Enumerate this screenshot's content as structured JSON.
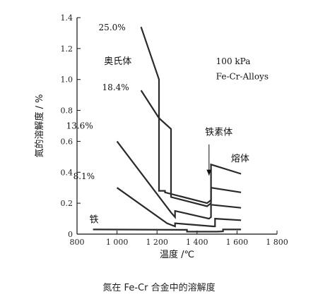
{
  "caption": "氮在 Fe-Cr 合金中的溶解度",
  "chart_data": {
    "type": "line",
    "title": "",
    "xlabel": "温度 /℃",
    "ylabel": "氮的溶解度 / %",
    "xlim": [
      800,
      1800
    ],
    "ylim": [
      0,
      1.4
    ],
    "x_ticks": [
      800,
      1000,
      1200,
      1400,
      1600,
      1800
    ],
    "x_tick_labels": [
      "800",
      "1 000",
      "1 200",
      "1 400",
      "1 600",
      "1 800"
    ],
    "y_ticks": [
      0,
      0.2,
      0.4,
      0.6,
      0.8,
      1.0,
      1.2,
      1.4
    ],
    "y_tick_labels": [
      "0",
      "0.2",
      "0.4",
      "0.6",
      "0.8",
      "1.0",
      "1.2",
      "1.4"
    ],
    "grid": false,
    "series": [
      {
        "name": "25.0%",
        "x": [
          1120,
          1210,
          1210,
          1240,
          1240,
          1450,
          1470,
          1470,
          1620
        ],
        "y": [
          1.34,
          1.0,
          0.28,
          0.28,
          0.27,
          0.2,
          0.22,
          0.45,
          0.39
        ]
      },
      {
        "name": "18.4%",
        "x": [
          1120,
          1210,
          1270,
          1270,
          1450,
          1470,
          1470,
          1620
        ],
        "y": [
          0.93,
          0.75,
          0.68,
          0.24,
          0.18,
          0.2,
          0.3,
          0.27
        ]
      },
      {
        "name": "13.6%",
        "x": [
          1000,
          1270,
          1290,
          1290,
          1460,
          1470,
          1470,
          1620
        ],
        "y": [
          0.6,
          0.14,
          0.11,
          0.15,
          0.1,
          0.11,
          0.19,
          0.17
        ]
      },
      {
        "name": "8.1%",
        "x": [
          1000,
          1250,
          1290,
          1290,
          1480,
          1490,
          1490,
          1620
        ],
        "y": [
          0.3,
          0.07,
          0.05,
          0.07,
          0.05,
          0.05,
          0.1,
          0.09
        ]
      },
      {
        "name": "铁",
        "x": [
          880,
          1320,
          1350,
          1350,
          1500,
          1530,
          1530,
          1620
        ],
        "y": [
          0.03,
          0.028,
          0.028,
          0.016,
          0.016,
          0.018,
          0.03,
          0.03
        ]
      }
    ],
    "annotations": [
      {
        "text": "奥氏体",
        "x": 935,
        "y": 1.1
      },
      {
        "text": "100 kPa",
        "x": 1495,
        "y": 1.1
      },
      {
        "text": "Fe-Cr-Alloys",
        "x": 1495,
        "y": 1.0
      },
      {
        "text": "铁素体",
        "x": 1440,
        "y": 0.64
      },
      {
        "text": "熔体",
        "x": 1570,
        "y": 0.47
      }
    ]
  }
}
